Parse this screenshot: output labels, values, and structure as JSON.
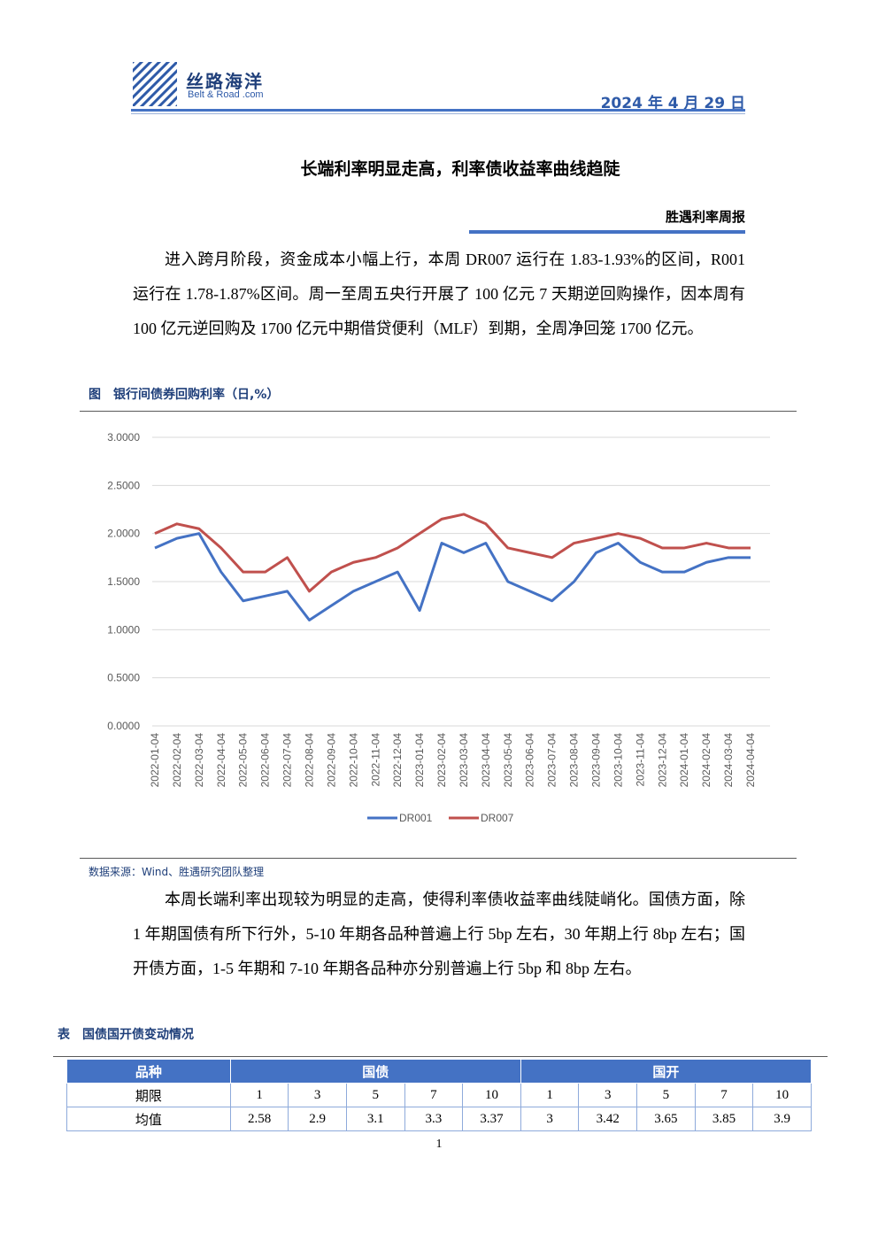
{
  "header": {
    "logo": "丝路海洋",
    "logo_sub": "Belt & Road .com",
    "date": "2024 年 4 月 29 日"
  },
  "title": "长端利率明显走高，利率债收益率曲线趋陡",
  "subtitle": "胜遇利率周报",
  "paragraphs": [
    "进入跨月阶段，资金成本小幅上行，本周 DR007 运行在 1.83-1.93%的区间，R001 运行在 1.78-1.87%区间。周一至周五央行开展了 100 亿元 7 天期逆回购操作，因本周有 100 亿元逆回购及 1700 亿元中期借贷便利（MLF）到期，全周净回笼 1700 亿元。",
    "本周长端利率出现较为明显的走高，使得利率债收益率曲线陡峭化。国债方面，除 1 年期国债有所下行外，5-10 年期各品种普遍上行 5bp 左右，30 年期上行 8bp 左右；国开债方面，1-5 年期和 7-10 年期各品种亦分别普遍上行 5bp 和 8bp 左右。"
  ],
  "chart_caption": "图　银行间债券回购利率（日,%）",
  "chart_data": {
    "type": "line",
    "categories": [
      "2022-01-04",
      "2022-02-04",
      "2022-03-04",
      "2022-04-04",
      "2022-05-04",
      "2022-06-04",
      "2022-07-04",
      "2022-08-04",
      "2022-09-04",
      "2022-10-04",
      "2022-11-04",
      "2022-12-04",
      "2023-01-04",
      "2023-02-04",
      "2023-03-04",
      "2023-04-04",
      "2023-05-04",
      "2023-06-04",
      "2023-07-04",
      "2023-08-04",
      "2023-09-04",
      "2023-10-04",
      "2023-11-04",
      "2023-12-04",
      "2024-01-04",
      "2024-02-04",
      "2024-03-04",
      "2024-04-04"
    ],
    "series": [
      {
        "name": "DR001",
        "color": "#4472c4",
        "values": [
          1.85,
          1.95,
          2.0,
          1.6,
          1.3,
          1.35,
          1.4,
          1.1,
          1.25,
          1.4,
          1.5,
          1.6,
          1.2,
          1.9,
          1.8,
          1.9,
          1.5,
          1.4,
          1.3,
          1.5,
          1.8,
          1.9,
          1.7,
          1.6,
          1.6,
          1.7,
          1.75,
          1.75
        ]
      },
      {
        "name": "DR007",
        "color": "#c0504d",
        "values": [
          2.0,
          2.1,
          2.05,
          1.85,
          1.6,
          1.6,
          1.75,
          1.4,
          1.6,
          1.7,
          1.75,
          1.85,
          2.0,
          2.15,
          2.2,
          2.1,
          1.85,
          1.8,
          1.75,
          1.9,
          1.95,
          2.0,
          1.95,
          1.85,
          1.85,
          1.9,
          1.85,
          1.85
        ]
      }
    ],
    "ylim": [
      0,
      3
    ],
    "yticks": [
      {
        "value": 0,
        "label": "0.0000"
      },
      {
        "value": 0.5,
        "label": "0.5000"
      },
      {
        "value": 1,
        "label": "1.0000"
      },
      {
        "value": 1.5,
        "label": "1.5000"
      },
      {
        "value": 2,
        "label": "2.0000"
      },
      {
        "value": 2.5,
        "label": "2.5000"
      },
      {
        "value": 3,
        "label": "3.0000"
      }
    ],
    "grid": true,
    "legend": "bottom"
  },
  "source": "数据来源：Wind、胜遇研究团队整理",
  "table_caption": "表　国债国开债变动情况",
  "table": {
    "header": [
      "品种",
      "国债",
      "国开"
    ],
    "rows": [
      [
        "期限",
        1,
        3,
        5,
        7,
        10,
        1,
        3,
        5,
        7,
        10
      ],
      [
        "均值",
        2.58,
        2.9,
        3.1,
        3.3,
        3.37,
        3,
        3.42,
        3.65,
        3.85,
        3.9
      ]
    ]
  },
  "page_number": "1"
}
